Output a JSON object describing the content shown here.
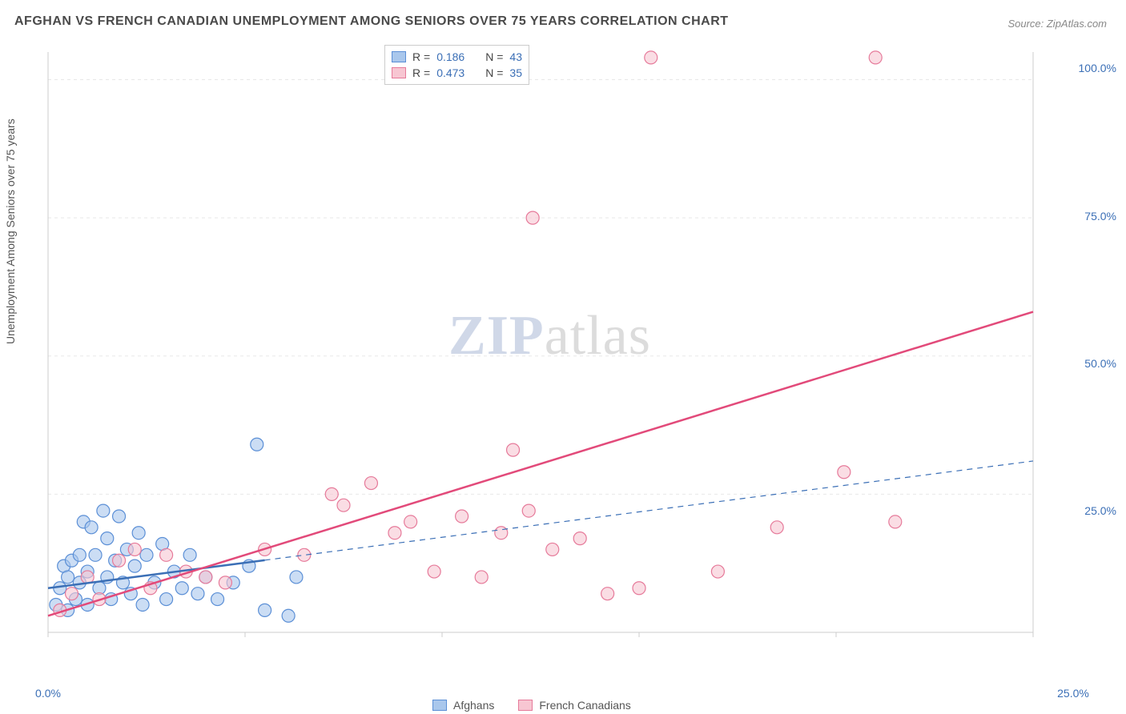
{
  "title": "AFGHAN VS FRENCH CANADIAN UNEMPLOYMENT AMONG SENIORS OVER 75 YEARS CORRELATION CHART",
  "source": "Source: ZipAtlas.com",
  "y_axis_label": "Unemployment Among Seniors over 75 years",
  "watermark_a": "ZIP",
  "watermark_b": "atlas",
  "chart": {
    "type": "scatter",
    "xlim": [
      0,
      25
    ],
    "ylim": [
      0,
      105
    ],
    "x_ticks": [
      0,
      5,
      10,
      15,
      20,
      25
    ],
    "y_ticks": [
      25,
      50,
      75,
      100
    ],
    "x_tick_labels": [
      "0.0%",
      "",
      "",
      "",
      "",
      "25.0%"
    ],
    "y_tick_labels": [
      "25.0%",
      "50.0%",
      "75.0%",
      "100.0%"
    ],
    "background_color": "#ffffff",
    "grid_color": "#e8e8e8",
    "axis_color": "#cccccc",
    "marker_radius": 8,
    "marker_stroke_width": 1.2,
    "series": [
      {
        "name": "Afghans",
        "fill": "#a9c7ec",
        "stroke": "#5b8fd6",
        "line_color": "#3b6fb6",
        "line_width": 2.5,
        "dash_after_x": 5.5,
        "r": "0.186",
        "n": "43",
        "trend": {
          "x1": 0,
          "y1": 8,
          "x2": 25,
          "y2": 31
        },
        "points": [
          [
            0.2,
            5
          ],
          [
            0.3,
            8
          ],
          [
            0.4,
            12
          ],
          [
            0.5,
            4
          ],
          [
            0.5,
            10
          ],
          [
            0.6,
            13
          ],
          [
            0.7,
            6
          ],
          [
            0.8,
            14
          ],
          [
            0.8,
            9
          ],
          [
            0.9,
            20
          ],
          [
            1.0,
            11
          ],
          [
            1.0,
            5
          ],
          [
            1.1,
            19
          ],
          [
            1.2,
            14
          ],
          [
            1.3,
            8
          ],
          [
            1.4,
            22
          ],
          [
            1.5,
            17
          ],
          [
            1.5,
            10
          ],
          [
            1.6,
            6
          ],
          [
            1.7,
            13
          ],
          [
            1.8,
            21
          ],
          [
            1.9,
            9
          ],
          [
            2.0,
            15
          ],
          [
            2.1,
            7
          ],
          [
            2.2,
            12
          ],
          [
            2.3,
            18
          ],
          [
            2.4,
            5
          ],
          [
            2.5,
            14
          ],
          [
            2.7,
            9
          ],
          [
            2.9,
            16
          ],
          [
            3.0,
            6
          ],
          [
            3.2,
            11
          ],
          [
            3.4,
            8
          ],
          [
            3.6,
            14
          ],
          [
            3.8,
            7
          ],
          [
            4.0,
            10
          ],
          [
            4.3,
            6
          ],
          [
            4.7,
            9
          ],
          [
            5.1,
            12
          ],
          [
            5.3,
            34
          ],
          [
            5.5,
            4
          ],
          [
            6.1,
            3
          ],
          [
            6.3,
            10
          ]
        ]
      },
      {
        "name": "French Canadians",
        "fill": "#f7c6d2",
        "stroke": "#e67a9a",
        "line_color": "#e24a7a",
        "line_width": 2.5,
        "dash_after_x": 999,
        "r": "0.473",
        "n": "35",
        "trend": {
          "x1": 0,
          "y1": 3,
          "x2": 25,
          "y2": 58
        },
        "points": [
          [
            0.3,
            4
          ],
          [
            0.6,
            7
          ],
          [
            1.0,
            10
          ],
          [
            1.3,
            6
          ],
          [
            1.8,
            13
          ],
          [
            2.2,
            15
          ],
          [
            2.6,
            8
          ],
          [
            3.0,
            14
          ],
          [
            3.5,
            11
          ],
          [
            4.0,
            10
          ],
          [
            4.5,
            9
          ],
          [
            5.5,
            15
          ],
          [
            6.5,
            14
          ],
          [
            7.2,
            25
          ],
          [
            7.5,
            23
          ],
          [
            8.2,
            27
          ],
          [
            8.8,
            18
          ],
          [
            9.2,
            20
          ],
          [
            9.8,
            11
          ],
          [
            10.5,
            21
          ],
          [
            11.0,
            10
          ],
          [
            11.5,
            18
          ],
          [
            11.8,
            33
          ],
          [
            12.2,
            22
          ],
          [
            12.3,
            75
          ],
          [
            12.8,
            15
          ],
          [
            13.5,
            17
          ],
          [
            14.2,
            7
          ],
          [
            15.0,
            8
          ],
          [
            15.3,
            104
          ],
          [
            17.0,
            11
          ],
          [
            18.5,
            19
          ],
          [
            20.2,
            29
          ],
          [
            21.0,
            104
          ],
          [
            21.5,
            20
          ]
        ]
      }
    ]
  },
  "legend_bottom": [
    {
      "label": "Afghans",
      "fill": "#a9c7ec",
      "stroke": "#5b8fd6"
    },
    {
      "label": "French Canadians",
      "fill": "#f7c6d2",
      "stroke": "#e67a9a"
    }
  ],
  "legend_top_prefix_r": "R  =",
  "legend_top_prefix_n": "N  ="
}
